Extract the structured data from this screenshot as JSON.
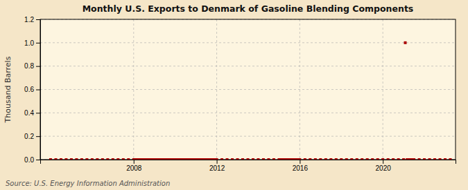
{
  "chart_data": {
    "type": "scatter",
    "title": "Monthly U.S. Exports to Denmark of Gasoline Blending Components",
    "ylabel": "Thousand Barrels",
    "annotations": [
      "Source: U.S. Energy Information Administration"
    ],
    "color": "#aa0000",
    "marker": "square",
    "grid": true,
    "xlim": [
      2003.5,
      2023.5
    ],
    "xticks": [
      2008,
      2012,
      2016,
      2020
    ],
    "ylim": [
      0.0,
      1.2
    ],
    "yticks": [
      {
        "value": 0.0,
        "label": "0.0"
      },
      0.2,
      0.4,
      0.6,
      0.8,
      {
        "value": 1.0,
        "label": "1.0"
      },
      1.2
    ],
    "x": [
      2004.0,
      2004.25,
      2004.5,
      2004.75,
      2005.0,
      2005.25,
      2005.5,
      2005.75,
      2006.0,
      2006.25,
      2006.5,
      2006.75,
      2007.0,
      2007.25,
      2007.5,
      2007.75,
      2008.0,
      2008.08,
      2008.17,
      2008.25,
      2008.33,
      2008.42,
      2008.5,
      2008.58,
      2008.67,
      2008.75,
      2008.83,
      2008.92,
      2009.0,
      2009.08,
      2009.17,
      2009.25,
      2009.33,
      2009.42,
      2009.5,
      2009.58,
      2009.67,
      2009.75,
      2009.83,
      2009.92,
      2010.0,
      2010.08,
      2010.17,
      2010.25,
      2010.33,
      2010.42,
      2010.5,
      2010.58,
      2010.67,
      2010.75,
      2010.83,
      2010.92,
      2011.0,
      2011.08,
      2011.17,
      2011.25,
      2011.33,
      2011.42,
      2011.5,
      2011.58,
      2011.67,
      2011.75,
      2011.83,
      2011.92,
      2012.0,
      2012.25,
      2012.5,
      2012.75,
      2013.0,
      2013.25,
      2013.5,
      2013.75,
      2014.0,
      2014.25,
      2014.5,
      2014.75,
      2015.0,
      2015.08,
      2015.17,
      2015.25,
      2015.33,
      2015.42,
      2015.5,
      2015.58,
      2015.67,
      2015.75,
      2015.83,
      2015.92,
      2016.0,
      2016.25,
      2016.5,
      2016.75,
      2017.0,
      2017.25,
      2017.5,
      2017.75,
      2018.0,
      2018.25,
      2018.5,
      2018.75,
      2019.0,
      2019.25,
      2019.5,
      2019.75,
      2020.0,
      2020.25,
      2020.5,
      2020.75,
      2021.0,
      2021.08,
      2021.17,
      2021.25,
      2021.33,
      2021.42,
      2021.5,
      2021.75,
      2022.0,
      2022.25,
      2022.5,
      2022.75,
      2023.0,
      2023.25
    ],
    "values": [
      0.0,
      0.0,
      0.0,
      0.0,
      0.0,
      0.0,
      0.0,
      0.0,
      0.0,
      0.0,
      0.0,
      0.0,
      0.0,
      0.0,
      0.0,
      0.0,
      0.0,
      0.0,
      0.0,
      0.0,
      0.0,
      0.0,
      0.0,
      0.0,
      0.0,
      0.0,
      0.0,
      0.0,
      0.0,
      0.0,
      0.0,
      0.0,
      0.0,
      0.0,
      0.0,
      0.0,
      0.0,
      0.0,
      0.0,
      0.0,
      0.0,
      0.0,
      0.0,
      0.0,
      0.0,
      0.0,
      0.0,
      0.0,
      0.0,
      0.0,
      0.0,
      0.0,
      0.0,
      0.0,
      0.0,
      0.0,
      0.0,
      0.0,
      0.0,
      0.0,
      0.0,
      0.0,
      0.0,
      0.0,
      0.0,
      0.0,
      0.0,
      0.0,
      0.0,
      0.0,
      0.0,
      0.0,
      0.0,
      0.0,
      0.0,
      0.0,
      0.0,
      0.0,
      0.0,
      0.0,
      0.0,
      0.0,
      0.0,
      0.0,
      0.0,
      0.0,
      0.0,
      0.0,
      0.0,
      0.0,
      0.0,
      0.0,
      0.0,
      0.0,
      0.0,
      0.0,
      0.0,
      0.0,
      0.0,
      0.0,
      0.0,
      0.0,
      0.0,
      0.0,
      0.0,
      0.0,
      0.0,
      0.0,
      0.0,
      1.0,
      0.0,
      0.0,
      0.0,
      0.0,
      0.0,
      0.0,
      0.0,
      0.0,
      0.0,
      0.0,
      0.0,
      0.0
    ]
  }
}
